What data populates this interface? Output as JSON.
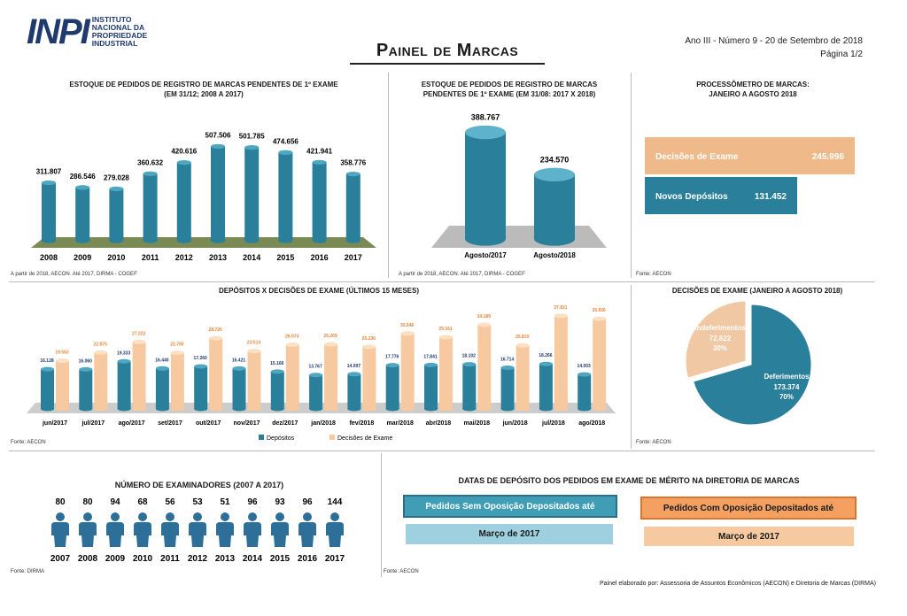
{
  "header": {
    "logo_mark": "INPI",
    "logo_text": "INSTITUTO NACIONAL DA PROPRIEDADE INDUSTRIAL",
    "title": "Painel de Marcas",
    "edition": "Ano III - Número 9 - 20 de Setembro de 2018",
    "page": "Página 1/2"
  },
  "colors": {
    "teal": "#2a7f9a",
    "orange": "#f0b98a",
    "orange_dark": "#e8843a",
    "light_blue": "#9fd0e0",
    "peach": "#f7c9a0"
  },
  "chart_data": [
    {
      "type": "bar",
      "title": "ESTOQUE DE PEDIDOS DE REGISTRO DE MARCAS PENDENTES DE 1º EXAME",
      "subtitle": "(EM 31/12; 2008 A 2017)",
      "categories": [
        "2008",
        "2009",
        "2010",
        "2011",
        "2012",
        "2013",
        "2014",
        "2015",
        "2016",
        "2017"
      ],
      "values": [
        311807,
        286546,
        279028,
        360632,
        420616,
        507506,
        501785,
        474656,
        421941,
        358776
      ],
      "labels": [
        "311.807",
        "286.546",
        "279.028",
        "360.632",
        "420.616",
        "507.506",
        "501.785",
        "474.656",
        "421.941",
        "358.776"
      ],
      "source": "A partir de 2018, AECON. Até 2017, DIRMA - COGEF"
    },
    {
      "type": "bar",
      "title": "ESTOQUE DE PEDIDOS DE REGISTRO DE MARCAS PENDENTES DE 1º EXAME (EM 31/08: 2017 X 2018)",
      "categories": [
        "Agosto/2017",
        "Agosto/2018"
      ],
      "values": [
        388767,
        234570
      ],
      "labels": [
        "388.767",
        "234.570"
      ],
      "source": "A partir de 2018, AECON. Até 2017, DIRMA - COGEF"
    },
    {
      "type": "bar",
      "orientation": "horizontal",
      "title": "PROCESSÔMETRO DE MARCAS:",
      "subtitle": "JANEIRO A AGOSTO 2018",
      "categories": [
        "Decisões de Exame",
        "Novos Depósitos"
      ],
      "values": [
        245996,
        131452
      ],
      "labels": [
        "245.996",
        "131.452"
      ],
      "source": "Fonte: AECON"
    },
    {
      "type": "bar",
      "title": "DEPÓSITOS X DECISÕES DE EXAME (ÚLTIMOS 15 MESES)",
      "categories": [
        "jun/2017",
        "jul/2017",
        "ago/2017",
        "set/2017",
        "out/2017",
        "nov/2017",
        "dez/2017",
        "jan/2018",
        "fev/2018",
        "mar/2018",
        "abr/2018",
        "mai/2018",
        "jun/2018",
        "jul/2018",
        "ago/2018"
      ],
      "series": [
        {
          "name": "Depósitos",
          "values": [
            16128,
            16060,
            19333,
            16440,
            17260,
            16421,
            15166,
            13767,
            14097,
            17776,
            17841,
            18102,
            16714,
            18266,
            14003
          ],
          "labels": [
            "16.128",
            "16.060",
            "19.333",
            "16.440",
            "17.260",
            "16.421",
            "15.166",
            "13.767",
            "14.097",
            "17.776",
            "17.841",
            "18.102",
            "16.714",
            "18.266",
            "14.003"
          ]
        },
        {
          "name": "Decisões de Exame",
          "values": [
            19562,
            22875,
            27222,
            22790,
            28726,
            23514,
            26074,
            26269,
            25236,
            30646,
            29161,
            34189,
            25810,
            37831,
            36656
          ],
          "labels": [
            "19.562",
            "22.875",
            "27.222",
            "22.790",
            "28.726",
            "23.514",
            "26.074",
            "26.269",
            "25.236",
            "30.646",
            "29.161",
            "34.189",
            "25.810",
            "37.831",
            "36.656"
          ]
        }
      ],
      "legend": "bottom",
      "source": "Fonte: AECON"
    },
    {
      "type": "pie",
      "title": "DECISÕES DE EXAME (JANEIRO A AGOSTO 2018)",
      "slices": [
        {
          "name": "Deferimentos",
          "value": 173374,
          "label": "173.374",
          "pct": "70%"
        },
        {
          "name": "Indeferimentos",
          "value": 72622,
          "label": "72.622",
          "pct": "30%"
        }
      ],
      "source": "Fonte: AECON"
    }
  ],
  "examiners": {
    "title": "NÚMERO DE EXAMINADORES (2007 A 2017)",
    "years": [
      "2007",
      "2008",
      "2009",
      "2010",
      "2011",
      "2012",
      "2013",
      "2014",
      "2015",
      "2016",
      "2017"
    ],
    "counts": [
      "80",
      "80",
      "94",
      "68",
      "56",
      "53",
      "51",
      "96",
      "93",
      "96",
      "144"
    ],
    "source": "Fonte: DIRMA"
  },
  "filing_dates": {
    "title": "DATAS DE DEPÓSITO DOS PEDIDOS EM EXAME DE MÉRITO NA DIRETORIA DE MARCAS",
    "without_label": "Pedidos Sem Oposição Depositados até",
    "without_value": "Março de 2017",
    "with_label": "Pedidos Com Oposição Depositados até",
    "with_value": "Março de 2017",
    "source": "Fonte: AECON"
  },
  "footer": "Painel elaborado por: Assessoria de Assuntos Econômicos (AECON) e Diretoria de Marcas (DIRMA)"
}
